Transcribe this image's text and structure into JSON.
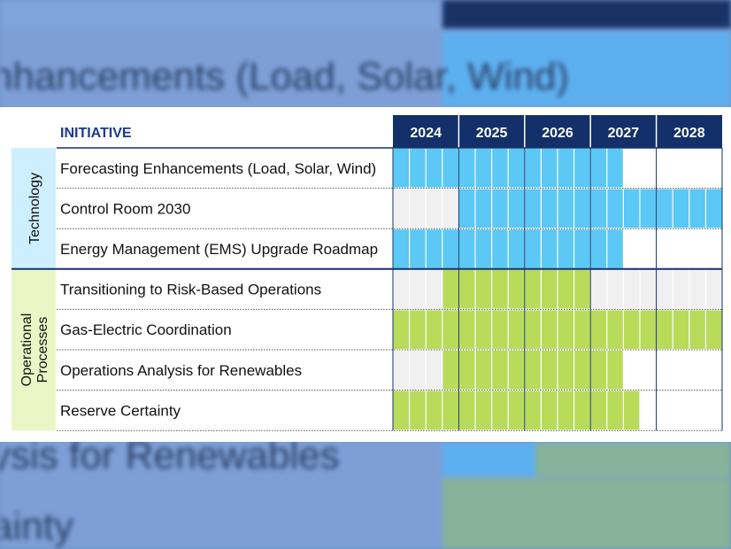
{
  "background_echo": {
    "top_text": "nhancements (Load, Solar, Wind)",
    "mid_text": "ysis for Renewables",
    "bottom_text": "ainty",
    "header_years": [
      "2024",
      "2025"
    ]
  },
  "chart_data": {
    "type": "gantt",
    "header_label": "INITIATIVE",
    "years": [
      "2024",
      "2025",
      "2026",
      "2027",
      "2028"
    ],
    "quarters_per_year": 4,
    "groups": [
      {
        "name": "Technology",
        "color": "#cdefff",
        "bar_color": "#5bc8f5",
        "start_row": 0,
        "end_row": 2
      },
      {
        "name": "Operational Processes",
        "name_lines": [
          "Operational",
          "Processes"
        ],
        "color": "#eaf6c6",
        "bar_color": "#b8db5a",
        "start_row": 3,
        "end_row": 6
      }
    ],
    "rows": [
      {
        "label": "Forecasting Enhancements (Load, Solar, Wind)",
        "group": 0,
        "start": "2024-Q1",
        "end": "2027-Q2"
      },
      {
        "label": "Control Room 2030",
        "group": 0,
        "start": "2025-Q1",
        "end": "2028-Q4"
      },
      {
        "label": "Energy Management (EMS) Upgrade Roadmap",
        "group": 0,
        "start": "2024-Q1",
        "end": "2027-Q2"
      },
      {
        "label": "Transitioning to Risk-Based Operations",
        "group": 1,
        "start": "2024-Q4",
        "end": "2026-Q4"
      },
      {
        "label": "Gas-Electric Coordination",
        "group": 1,
        "start": "2024-Q1",
        "end": "2028-Q4"
      },
      {
        "label": "Operations Analysis for Renewables",
        "group": 1,
        "start": "2024-Q4",
        "end": "2027-Q2"
      },
      {
        "label": "Reserve Certainty",
        "group": 1,
        "start": "2024-Q1",
        "end": "2027-Q3"
      }
    ],
    "colors": {
      "header_bg": "#13306a",
      "header_text": "#ffffff",
      "initiative_text": "#1b3a8a",
      "empty_shaded": "#f0f0f0",
      "empty_plain": "#ffffff"
    },
    "grid": true
  }
}
